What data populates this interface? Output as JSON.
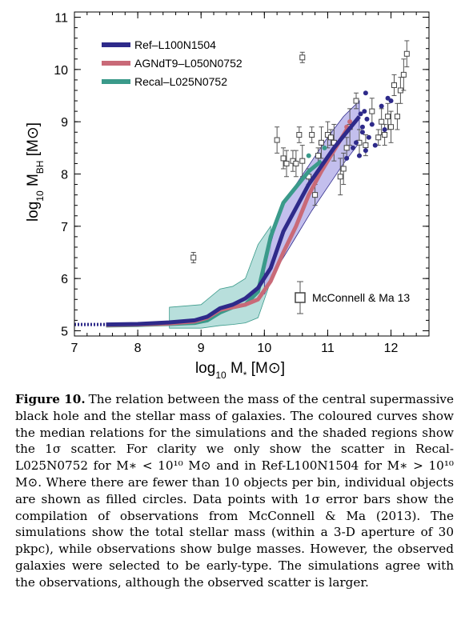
{
  "chart_data": {
    "type": "line",
    "title": "",
    "xlabel": "log₁₀ M∗ [M⊙]",
    "ylabel": "log₁₀ M_BH [M⊙]",
    "xlim": [
      7,
      12.6
    ],
    "ylim": [
      4.9,
      11.1
    ],
    "xticks": [
      7,
      8,
      9,
      10,
      11,
      12
    ],
    "yticks": [
      5,
      6,
      7,
      8,
      9,
      10,
      11
    ],
    "xtick_labels": [
      "7",
      "8",
      "9",
      "10",
      "11",
      "12"
    ],
    "ytick_labels": [
      "5",
      "6",
      "7",
      "8",
      "9",
      "10",
      "11"
    ],
    "x_axis_label_parts": {
      "pre": "log",
      "sub": "10",
      "mid": " M",
      "sub2": "*",
      "post": " [M⊙]"
    },
    "y_axis_label_parts": {
      "pre": "log",
      "sub": "10",
      "mid": " M",
      "sub2": "BH",
      "post": " [M⊙]"
    },
    "legend_position": "top-left",
    "grid": false,
    "series": [
      {
        "name": "Ref–L100N1504",
        "color": "#2e2a8a",
        "band_color": "#b8b4ea",
        "dotted_start": [
          [
            7.0,
            5.12
          ],
          [
            7.5,
            5.12
          ]
        ],
        "x": [
          7.5,
          8.0,
          8.5,
          8.9,
          9.1,
          9.3,
          9.5,
          9.7,
          9.9,
          10.1,
          10.3,
          10.5,
          10.7,
          10.9,
          11.1,
          11.3,
          11.5
        ],
        "y": [
          5.12,
          5.13,
          5.16,
          5.2,
          5.27,
          5.43,
          5.5,
          5.62,
          5.82,
          6.2,
          6.9,
          7.35,
          7.8,
          8.15,
          8.5,
          8.8,
          9.1
        ],
        "band_upper": [
          6.25,
          7.3,
          7.8,
          8.25,
          8.7,
          9.1,
          9.4
        ],
        "band_lower": [
          5.7,
          6.3,
          6.8,
          7.3,
          7.75,
          8.2,
          8.6
        ],
        "band_x": [
          10.0,
          10.25,
          10.5,
          10.75,
          11.0,
          11.25,
          11.5
        ],
        "scatter_x": [
          11.3,
          11.45,
          11.52,
          11.55,
          11.58,
          11.6,
          11.62,
          11.65,
          11.7,
          11.5,
          11.55,
          11.75,
          11.85,
          11.9,
          11.95,
          12.0,
          11.4,
          11.6
        ],
        "scatter_y": [
          8.3,
          8.6,
          9.15,
          8.9,
          9.2,
          8.45,
          9.05,
          8.7,
          8.95,
          8.35,
          8.8,
          8.55,
          9.3,
          8.85,
          9.45,
          9.4,
          8.5,
          9.55
        ]
      },
      {
        "name": "AGNdT9–L050N0752",
        "color": "#c96a78",
        "x": [
          7.5,
          8.0,
          8.5,
          8.9,
          9.1,
          9.3,
          9.5,
          9.7,
          9.9,
          10.1,
          10.3,
          10.5,
          10.7,
          10.9,
          11.1,
          11.3
        ],
        "y": [
          5.11,
          5.12,
          5.14,
          5.18,
          5.25,
          5.4,
          5.45,
          5.5,
          5.6,
          5.95,
          6.5,
          7.0,
          7.6,
          8.05,
          8.45,
          8.85
        ],
        "scatter_x": [
          11.3,
          11.35
        ],
        "scatter_y": [
          8.9,
          9.0
        ]
      },
      {
        "name": "Recal–L025N0752",
        "color": "#3a9a8a",
        "band_color": "#b0dcd8",
        "x": [
          7.5,
          8.0,
          8.5,
          8.9,
          9.1,
          9.3,
          9.5,
          9.7,
          9.9,
          10.1,
          10.3,
          10.5,
          10.7,
          10.9
        ],
        "y": [
          5.1,
          5.11,
          5.13,
          5.15,
          5.2,
          5.35,
          5.45,
          5.5,
          5.75,
          6.8,
          7.45,
          7.75,
          8.05,
          8.25
        ],
        "band_x": [
          8.5,
          9.0,
          9.3,
          9.5,
          9.7,
          9.9,
          10.1
        ],
        "band_upper": [
          5.45,
          5.5,
          5.8,
          5.85,
          6.0,
          6.65,
          7.0
        ],
        "band_lower": [
          5.05,
          5.05,
          5.1,
          5.12,
          5.15,
          5.25,
          5.95
        ],
        "scatter_x": [
          10.7,
          10.95
        ],
        "scatter_y": [
          8.35,
          8.5
        ]
      },
      {
        "name": "McConnell & Ma 13",
        "color": "#000000",
        "marker": "open-square",
        "x": [
          8.88,
          10.2,
          10.3,
          10.35,
          10.45,
          10.5,
          10.55,
          10.6,
          10.7,
          10.75,
          10.8,
          10.85,
          10.9,
          11.0,
          11.05,
          11.1,
          11.2,
          11.25,
          11.3,
          11.35,
          11.45,
          11.5,
          11.6,
          11.7,
          11.8,
          11.85,
          11.9,
          11.95,
          12.0,
          12.05,
          12.1,
          12.15,
          12.2,
          12.25,
          10.6
        ],
        "y": [
          6.4,
          8.65,
          8.3,
          8.2,
          8.25,
          8.2,
          8.75,
          10.23,
          7.95,
          8.75,
          7.6,
          8.35,
          8.6,
          8.75,
          8.7,
          8.6,
          7.95,
          8.1,
          8.5,
          8.9,
          9.4,
          8.6,
          8.55,
          9.2,
          8.7,
          9.0,
          8.75,
          9.1,
          8.9,
          9.7,
          9.1,
          9.6,
          9.9,
          10.3,
          8.25
        ],
        "yerr": [
          0.1,
          0.25,
          0.2,
          0.25,
          0.2,
          0.25,
          0.15,
          0.1,
          0.15,
          0.15,
          0.2,
          0.15,
          0.3,
          0.25,
          0.15,
          0.35,
          0.35,
          0.3,
          0.2,
          0.35,
          0.15,
          0.25,
          0.2,
          0.25,
          0.15,
          0.25,
          0.2,
          0.25,
          0.3,
          0.2,
          0.25,
          0.25,
          0.3,
          0.25,
          0.3
        ]
      }
    ]
  },
  "caption": {
    "label": "Figure 10.",
    "text": "The relation between the mass of the central supermassive black hole and the stellar mass of galaxies. The coloured curves show the median relations for the simulations and the shaded regions show the 1σ scatter. For clarity we only show the scatter in Recal-L025N0752 for M∗ < 10¹⁰ M⊙ and in Ref-L100N1504 for M∗ > 10¹⁰ M⊙. Where there are fewer than 10 objects per bin, individual objects are shown as filled circles. Data points with 1σ error bars show the compilation of observations from McConnell & Ma (2013). The simulations show the total stellar mass (within a 3-D aperture of 30 pkpc), while observations show bulge masses. However, the observed galaxies were selected to be early-type. The simulations agree with the observations, although the observed scatter is larger."
  }
}
